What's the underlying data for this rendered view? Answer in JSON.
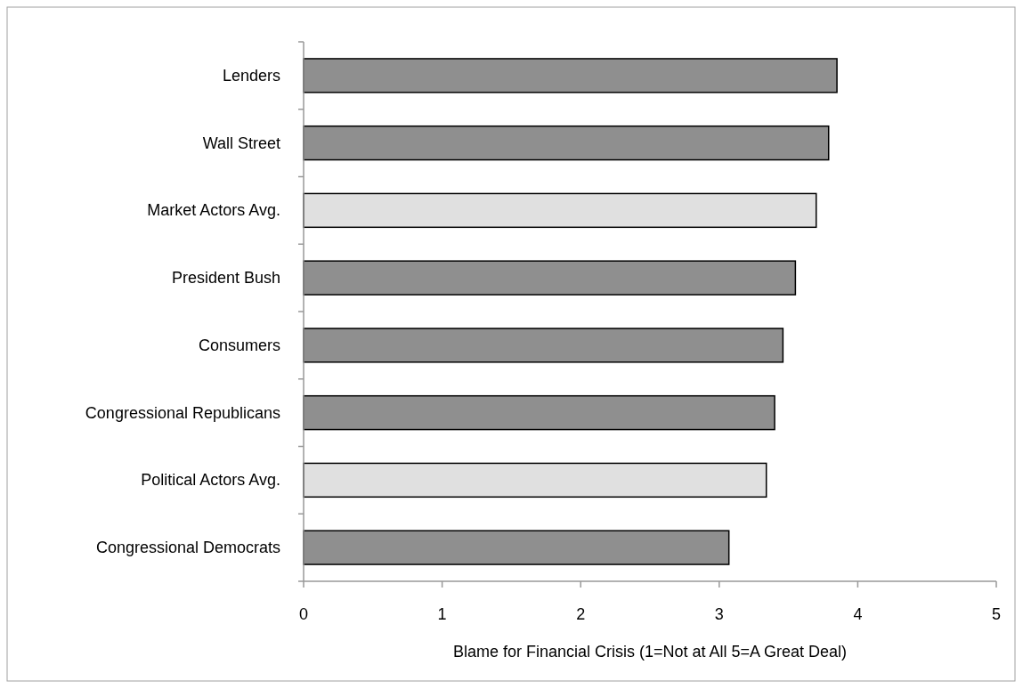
{
  "chart_data": {
    "type": "bar",
    "orientation": "horizontal",
    "xlabel": "Blame for Financial Crisis (1=Not at All 5=A Great Deal)",
    "categories": [
      "Lenders",
      "Wall Street",
      "Market Actors Avg.",
      "President Bush",
      "Consumers",
      "Congressional Republicans",
      "Political Actors Avg.",
      "Congressional Democrats"
    ],
    "values": [
      3.85,
      3.79,
      3.7,
      3.55,
      3.46,
      3.4,
      3.34,
      3.07
    ],
    "colors": [
      "#8f8f8f",
      "#8f8f8f",
      "#e0e0e0",
      "#8f8f8f",
      "#8f8f8f",
      "#8f8f8f",
      "#e0e0e0",
      "#8f8f8f"
    ],
    "xlim": [
      0,
      5
    ],
    "xticks": [
      0,
      1,
      2,
      3,
      4,
      5
    ],
    "grid": false
  }
}
